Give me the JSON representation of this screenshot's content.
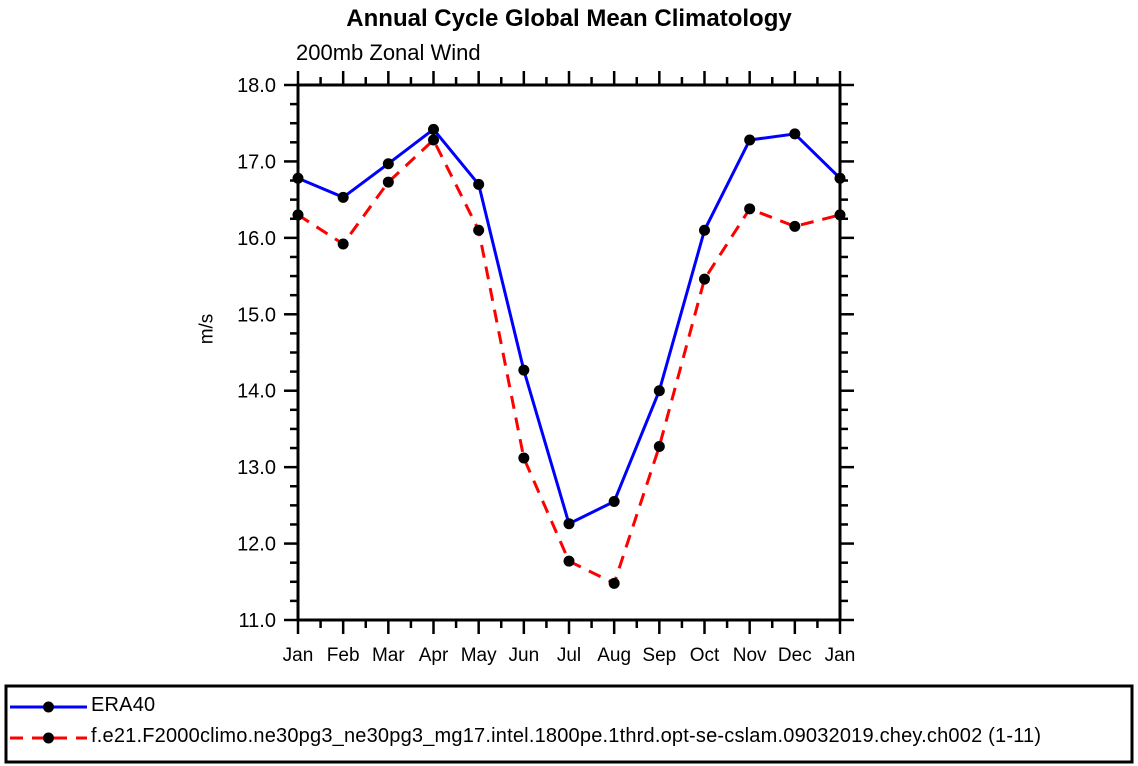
{
  "chart": {
    "title": "Annual Cycle Global Mean Climatology",
    "subtitle": "200mb Zonal Wind",
    "y_axis_unit": "m/s"
  },
  "colors": {
    "axis": "#000000",
    "marker": "#000000",
    "era40_line": "#0000ff",
    "model_line": "#ff0000",
    "background": "#ffffff"
  },
  "chart_data": {
    "type": "line",
    "title": "Annual Cycle Global Mean Climatology",
    "subtitle": "200mb Zonal Wind",
    "xlabel": "",
    "ylabel": "m/s",
    "categories": [
      "Jan",
      "Feb",
      "Mar",
      "Apr",
      "May",
      "Jun",
      "Jul",
      "Aug",
      "Sep",
      "Oct",
      "Nov",
      "Dec",
      "Jan"
    ],
    "ylim": [
      11.0,
      18.0
    ],
    "y_major_step": 1.0,
    "y_minor_step": 0.25,
    "x_minor_step": 0.5,
    "y_tick_labels": [
      "11.0",
      "12.0",
      "13.0",
      "14.0",
      "15.0",
      "16.0",
      "17.0",
      "18.0"
    ],
    "grid": false,
    "legend_position": "bottom-outside-box",
    "series": [
      {
        "name": "ERA40",
        "color": "#0000ff",
        "line_style": "solid",
        "marker": "filled-circle",
        "marker_color": "#000000",
        "values": [
          16.78,
          16.53,
          16.97,
          17.42,
          16.7,
          14.27,
          12.26,
          12.55,
          14.0,
          16.1,
          17.28,
          17.36,
          16.78
        ]
      },
      {
        "name": "f.e21.F2000climo.ne30pg3_ne30pg3_mg17.intel.1800pe.1thrd.opt-se-cslam.09032019.chey.ch002 (1-11)",
        "color": "#ff0000",
        "line_style": "dashed",
        "marker": "filled-circle",
        "marker_color": "#000000",
        "values": [
          16.3,
          15.92,
          16.73,
          17.28,
          16.1,
          13.12,
          11.77,
          11.48,
          13.27,
          15.46,
          16.38,
          16.15,
          16.3
        ]
      }
    ]
  }
}
